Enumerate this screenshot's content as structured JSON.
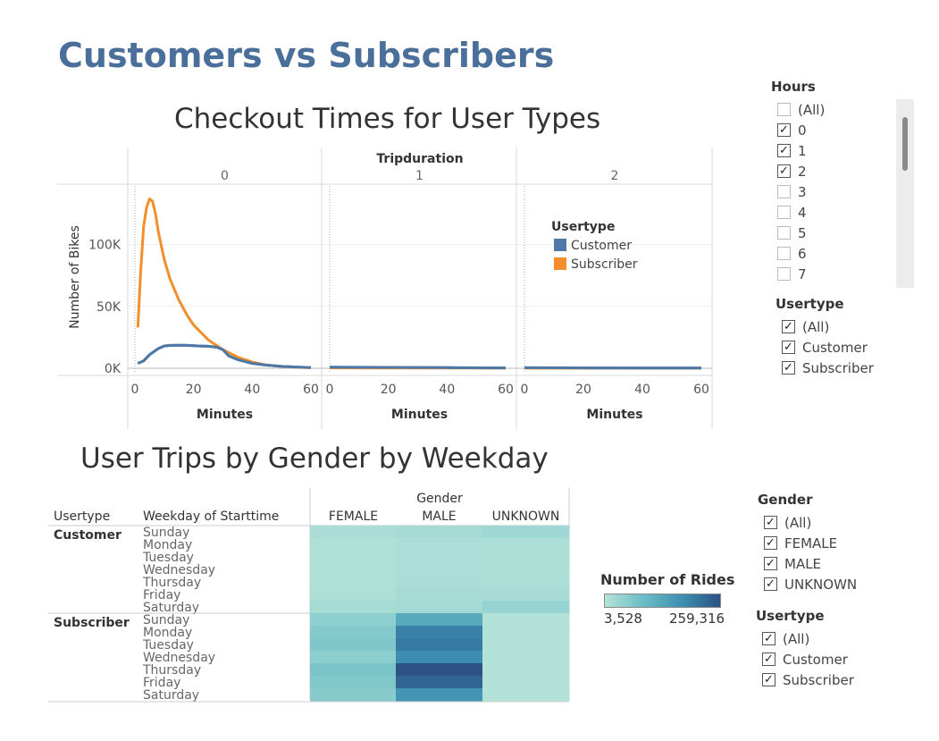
{
  "dashboard": {
    "title": "Customers vs Subscribers"
  },
  "checkout": {
    "title": "Checkout Times for User Types",
    "column_header": "Tripduration",
    "panels": [
      "0",
      "1",
      "2"
    ],
    "ylabel": "Number of Bikes",
    "xlabel": "Minutes",
    "legend_title": "Usertype"
  },
  "heatmap": {
    "title": "User Trips by Gender by Weekday",
    "header_usertype": "Usertype",
    "header_weekday": "Weekday of Starttime",
    "header_gender": "Gender",
    "genders": [
      "FEMALE",
      "MALE",
      "UNKNOWN"
    ],
    "groups": [
      "Customer",
      "Subscriber"
    ],
    "days": [
      "Sunday",
      "Monday",
      "Tuesday",
      "Wednesday",
      "Thursday",
      "Friday",
      "Saturday"
    ],
    "legend_title": "Number of Rides",
    "legend_min": "3,528",
    "legend_max": "259,316"
  },
  "filters": {
    "hours": {
      "title": "Hours",
      "items": [
        {
          "label": "(All)",
          "checked": false
        },
        {
          "label": "0",
          "checked": true
        },
        {
          "label": "1",
          "checked": true
        },
        {
          "label": "2",
          "checked": true
        },
        {
          "label": "3",
          "checked": false
        },
        {
          "label": "4",
          "checked": false
        },
        {
          "label": "5",
          "checked": false
        },
        {
          "label": "6",
          "checked": false
        },
        {
          "label": "7",
          "checked": false
        }
      ]
    },
    "usertype_top": {
      "title": "Usertype",
      "items": [
        {
          "label": "(All)",
          "checked": true
        },
        {
          "label": "Customer",
          "checked": true
        },
        {
          "label": "Subscriber",
          "checked": true
        }
      ]
    },
    "gender": {
      "title": "Gender",
      "items": [
        {
          "label": "(All)",
          "checked": true
        },
        {
          "label": "FEMALE",
          "checked": true
        },
        {
          "label": "MALE",
          "checked": true
        },
        {
          "label": "UNKNOWN",
          "checked": true
        }
      ]
    },
    "usertype_bottom": {
      "title": "Usertype",
      "items": [
        {
          "label": "(All)",
          "checked": true
        },
        {
          "label": "Customer",
          "checked": true
        },
        {
          "label": "Subscriber",
          "checked": true
        }
      ]
    }
  },
  "colors": {
    "customer": "#4e79a7",
    "subscriber": "#f28e2b",
    "title": "#4a6f9a",
    "heat_low": "#b3e2d8",
    "heat_high": "#2c5383"
  },
  "chart_data": [
    {
      "type": "line",
      "title": "Checkout Times for User Types",
      "xlabel": "Minutes",
      "ylabel": "Number of Bikes",
      "facet": "Tripduration",
      "panels": [
        "0",
        "1",
        "2"
      ],
      "xlim": [
        0,
        60
      ],
      "ylim": [
        0,
        140000
      ],
      "xticks": [
        0,
        20,
        40,
        60
      ],
      "yticks": [
        0,
        50000,
        100000
      ],
      "ytick_labels": [
        "0K",
        "50K",
        "100K"
      ],
      "legend": {
        "title": "Usertype",
        "placement": "top-right",
        "entries": [
          "Customer",
          "Subscriber"
        ]
      },
      "series": [
        {
          "name": "Customer",
          "panel": "0",
          "x": [
            1,
            3,
            5,
            8,
            10,
            12,
            15,
            18,
            20,
            22,
            25,
            28,
            30,
            32,
            35,
            40,
            45,
            50,
            55,
            60
          ],
          "y": [
            4000,
            6000,
            11000,
            16000,
            18000,
            18500,
            18600,
            18500,
            18200,
            18000,
            17800,
            17000,
            15000,
            10000,
            7000,
            4000,
            2500,
            1500,
            1000,
            600
          ]
        },
        {
          "name": "Subscriber",
          "panel": "0",
          "x": [
            1,
            2,
            3,
            4,
            5,
            6,
            7,
            8,
            10,
            12,
            15,
            18,
            20,
            25,
            30,
            35,
            40,
            45,
            50,
            55,
            60
          ],
          "y": [
            33000,
            80000,
            115000,
            130000,
            137000,
            135000,
            125000,
            110000,
            88000,
            72000,
            55000,
            42000,
            35000,
            23000,
            15000,
            9000,
            5000,
            2500,
            1500,
            800,
            400
          ]
        },
        {
          "name": "Customer",
          "panel": "1",
          "x": [
            0,
            20,
            40,
            60
          ],
          "y": [
            900,
            700,
            500,
            300
          ]
        },
        {
          "name": "Subscriber",
          "panel": "1",
          "x": [
            0,
            20,
            40,
            60
          ],
          "y": [
            300,
            200,
            150,
            100
          ]
        },
        {
          "name": "Customer",
          "panel": "2",
          "x": [
            0,
            20,
            40,
            60
          ],
          "y": [
            400,
            300,
            250,
            200
          ]
        },
        {
          "name": "Subscriber",
          "panel": "2",
          "x": [
            0,
            20,
            40,
            60
          ],
          "y": [
            100,
            80,
            60,
            50
          ]
        }
      ]
    },
    {
      "type": "heatmap",
      "title": "User Trips by Gender by Weekday",
      "columns": [
        "FEMALE",
        "MALE",
        "UNKNOWN"
      ],
      "rows": [
        {
          "usertype": "Customer",
          "day": "Sunday",
          "values": [
            15000,
            20000,
            30000
          ]
        },
        {
          "usertype": "Customer",
          "day": "Monday",
          "values": [
            9000,
            14000,
            12000
          ]
        },
        {
          "usertype": "Customer",
          "day": "Tuesday",
          "values": [
            8000,
            13000,
            11000
          ]
        },
        {
          "usertype": "Customer",
          "day": "Wednesday",
          "values": [
            8000,
            13000,
            11000
          ]
        },
        {
          "usertype": "Customer",
          "day": "Thursday",
          "values": [
            9000,
            15000,
            14000
          ]
        },
        {
          "usertype": "Customer",
          "day": "Friday",
          "values": [
            10000,
            18000,
            17000
          ]
        },
        {
          "usertype": "Customer",
          "day": "Saturday",
          "values": [
            18000,
            24000,
            38000
          ]
        },
        {
          "usertype": "Subscriber",
          "day": "Sunday",
          "values": [
            50000,
            130000,
            5000
          ]
        },
        {
          "usertype": "Subscriber",
          "day": "Monday",
          "values": [
            62000,
            200000,
            4500
          ]
        },
        {
          "usertype": "Subscriber",
          "day": "Tuesday",
          "values": [
            68000,
            210000,
            4000
          ]
        },
        {
          "usertype": "Subscriber",
          "day": "Wednesday",
          "values": [
            52000,
            185000,
            3800
          ]
        },
        {
          "usertype": "Subscriber",
          "day": "Thursday",
          "values": [
            75000,
            259316,
            3528
          ]
        },
        {
          "usertype": "Subscriber",
          "day": "Friday",
          "values": [
            66000,
            235000,
            3900
          ]
        },
        {
          "usertype": "Subscriber",
          "day": "Saturday",
          "values": [
            58000,
            170000,
            4200
          ]
        }
      ],
      "color_range": [
        3528,
        259316
      ],
      "legend_title": "Number of Rides"
    }
  ]
}
